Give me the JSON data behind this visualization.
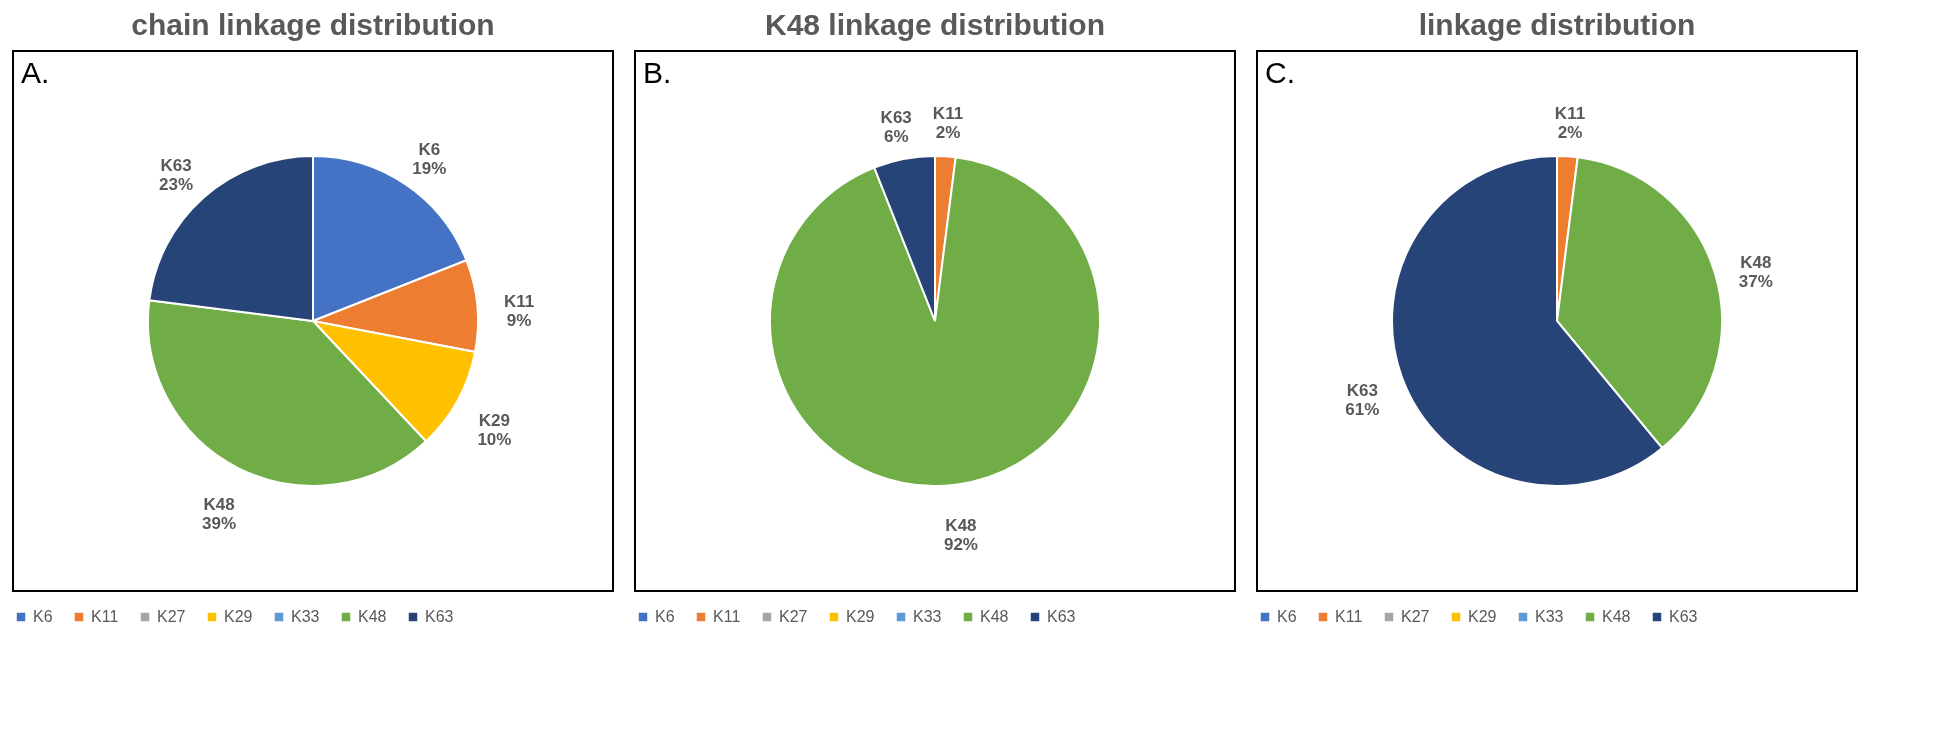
{
  "chart_data": [
    {
      "type": "pie",
      "title": "chain linkage distribution",
      "annotations": [
        "A."
      ],
      "legend": "bottom",
      "categories": [
        "K6",
        "K11",
        "K27",
        "K29",
        "K33",
        "K48",
        "K63"
      ],
      "values": [
        19,
        9,
        0,
        10,
        0,
        39,
        23
      ],
      "value_labels": [
        "19%",
        "9%",
        null,
        "10%",
        null,
        "39%",
        "23%"
      ],
      "colors": [
        "#4472c4",
        "#ed7d31",
        "#a5a5a5",
        "#ffc000",
        "#5b9bd5",
        "#70ad47",
        "#264478"
      ]
    },
    {
      "type": "pie",
      "title": "K48 linkage distribution",
      "annotations": [
        "B."
      ],
      "legend": "bottom",
      "categories": [
        "K6",
        "K11",
        "K27",
        "K29",
        "K33",
        "K48",
        "K63"
      ],
      "values": [
        0,
        2,
        0,
        0,
        0,
        92,
        6
      ],
      "value_labels": [
        null,
        "2%",
        null,
        null,
        null,
        "92%",
        "6%"
      ],
      "colors": [
        "#4472c4",
        "#ed7d31",
        "#a5a5a5",
        "#ffc000",
        "#5b9bd5",
        "#70ad47",
        "#264478"
      ]
    },
    {
      "type": "pie",
      "title": "linkage distribution",
      "annotations": [
        "C."
      ],
      "legend": "bottom",
      "categories": [
        "K6",
        "K11",
        "K27",
        "K29",
        "K33",
        "K48",
        "K63"
      ],
      "values": [
        0,
        2,
        0,
        0,
        0,
        37,
        61
      ],
      "value_labels": [
        null,
        "2%",
        null,
        null,
        null,
        "37%",
        "61%"
      ],
      "colors": [
        "#4472c4",
        "#ed7d31",
        "#a5a5a5",
        "#ffc000",
        "#5b9bd5",
        "#70ad47",
        "#264478"
      ]
    }
  ]
}
